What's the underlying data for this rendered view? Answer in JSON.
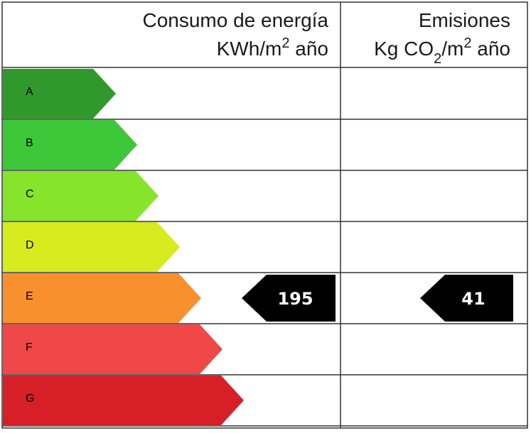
{
  "header": {
    "energy": {
      "title": "Consumo de energía",
      "unit": [
        "KWh/m",
        "2",
        " año"
      ]
    },
    "emissions": {
      "title": "Emisiones",
      "unit": [
        "Kg CO",
        "2",
        "/m",
        "2",
        " año"
      ]
    }
  },
  "classes": [
    {
      "letter": "A",
      "color": "#2f9a2b"
    },
    {
      "letter": "B",
      "color": "#3fc73a"
    },
    {
      "letter": "C",
      "color": "#86e42b"
    },
    {
      "letter": "D",
      "color": "#d6ec1e"
    },
    {
      "letter": "E",
      "color": "#f7902d"
    },
    {
      "letter": "F",
      "color": "#f04848"
    },
    {
      "letter": "G",
      "color": "#d61f27"
    }
  ],
  "rating": {
    "class": "E",
    "energy": "195",
    "emissions": "41"
  }
}
